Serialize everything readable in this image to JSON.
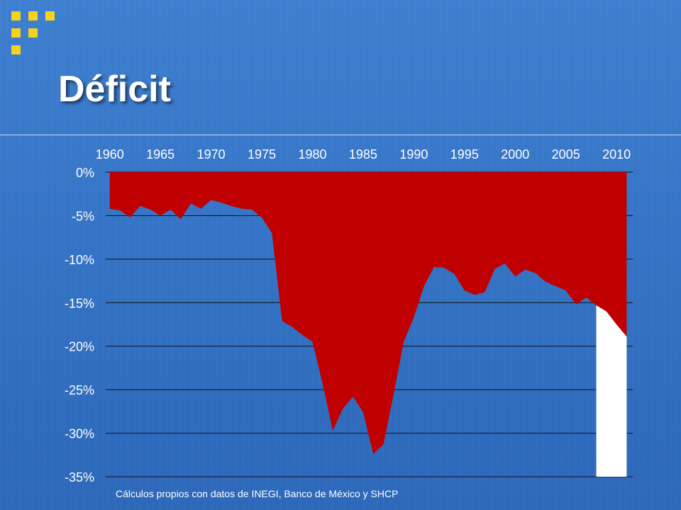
{
  "title": "Déficit",
  "source": "Cálculos propios con datos de INEGI, Banco de México y SHCP",
  "colors": {
    "fill": "#c00000",
    "accent": "#f5d21e",
    "background": "#3574c6",
    "projection": "#ffffff"
  },
  "chart_data": {
    "type": "area",
    "title": "Déficit",
    "xlabel": "",
    "ylabel": "",
    "x_ticks": [
      "1960",
      "1965",
      "1970",
      "1975",
      "1980",
      "1985",
      "1990",
      "1995",
      "2000",
      "2005",
      "2010"
    ],
    "y_ticks": [
      "0%",
      "-5%",
      "-10%",
      "-15%",
      "-20%",
      "-25%",
      "-30%",
      "-35%"
    ],
    "x_axis_position": "top",
    "ylim": [
      -35,
      0
    ],
    "xlim": [
      1959.6,
      2011.6
    ],
    "grid": true,
    "series": [
      {
        "x": [
          1960,
          1961,
          1962,
          1963,
          1964,
          1965,
          1966,
          1967,
          1968,
          1969,
          1970,
          1971,
          1972,
          1973,
          1974,
          1975,
          1976,
          1977,
          1978,
          1979,
          1980,
          1981,
          1982,
          1983,
          1984,
          1985,
          1986,
          1987,
          1988,
          1989,
          1990,
          1991,
          1992,
          1993,
          1994,
          1995,
          1996,
          1997,
          1998,
          1999,
          2000,
          2001,
          2002,
          2003,
          2004,
          2005,
          2006,
          2007,
          2008,
          2009,
          2010,
          2011
        ],
        "values": [
          -4.2,
          -4.4,
          -5.2,
          -3.9,
          -4.3,
          -5.0,
          -4.3,
          -5.4,
          -3.6,
          -4.2,
          -3.2,
          -3.5,
          -3.9,
          -4.2,
          -4.3,
          -5.2,
          -7.0,
          -17.1,
          -17.8,
          -18.7,
          -19.5,
          -24.3,
          -29.7,
          -27.2,
          -25.8,
          -27.6,
          -32.4,
          -31.3,
          -25.6,
          -19.5,
          -16.7,
          -13.1,
          -10.9,
          -11.0,
          -11.7,
          -13.6,
          -14.1,
          -13.8,
          -11.1,
          -10.5,
          -12.0,
          -11.2,
          -11.6,
          -12.6,
          -13.1,
          -13.6,
          -15.2,
          -14.4,
          -15.3,
          -16.0,
          -17.5,
          -18.9
        ]
      }
    ],
    "projection_range": [
      2008,
      2011
    ]
  }
}
